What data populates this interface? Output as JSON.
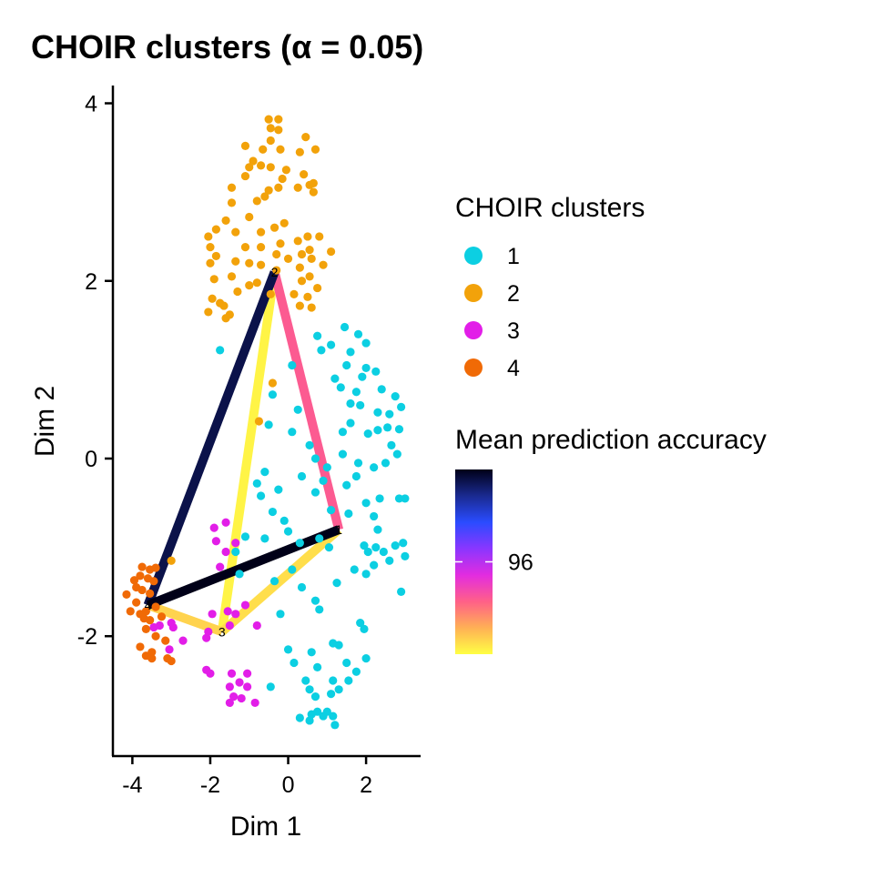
{
  "chart_data": {
    "type": "scatter",
    "title": "CHOIR clusters (α = 0.05)",
    "xlabel": "Dim 1",
    "ylabel": "Dim 2",
    "xlim": [
      -4.5,
      3.4
    ],
    "ylim": [
      -3.35,
      4.2
    ],
    "xticks": [
      -4,
      -2,
      0,
      2
    ],
    "yticks": [
      -2,
      0,
      2,
      4
    ],
    "grid": false,
    "legend_position": "right",
    "legend_clusters": {
      "title": "CHOIR clusters",
      "items": [
        {
          "label": "1",
          "color": "#0ccfe2"
        },
        {
          "label": "2",
          "color": "#f2a20a"
        },
        {
          "label": "3",
          "color": "#e21ee8"
        },
        {
          "label": "4",
          "color": "#f06a06"
        }
      ]
    },
    "legend_accuracy": {
      "title": "Mean prediction accuracy",
      "tick_label": "96",
      "tick_value": 96,
      "range": [
        93.5,
        98.5
      ],
      "colors": [
        "#ffff44",
        "#ffb055",
        "#ff6088",
        "#e22ce0",
        "#8a36ff",
        "#2a4cff",
        "#1a2a90",
        "#000018"
      ]
    },
    "centroids": [
      {
        "label": "1",
        "x": 1.3,
        "y": -0.8
      },
      {
        "label": "2",
        "x": -0.35,
        "y": 2.1
      },
      {
        "label": "3",
        "x": -1.7,
        "y": -1.95
      },
      {
        "label": "4",
        "x": -3.6,
        "y": -1.65
      }
    ],
    "edges": [
      {
        "from": 0,
        "to": 1,
        "accuracy": 95.0
      },
      {
        "from": 0,
        "to": 2,
        "accuracy": 93.8
      },
      {
        "from": 0,
        "to": 3,
        "accuracy": 98.5
      },
      {
        "from": 1,
        "to": 2,
        "accuracy": 93.6
      },
      {
        "from": 1,
        "to": 3,
        "accuracy": 98.2
      },
      {
        "from": 2,
        "to": 3,
        "accuracy": 93.9
      }
    ],
    "series": [
      {
        "name": "1",
        "color": "#0ccfe2",
        "points": [
          [
            -1.75,
            1.22
          ],
          [
            0.75,
            1.38
          ],
          [
            0.85,
            1.22
          ],
          [
            1.1,
            1.28
          ],
          [
            1.45,
            1.48
          ],
          [
            1.6,
            1.2
          ],
          [
            1.8,
            1.4
          ],
          [
            2.0,
            1.3
          ],
          [
            1.5,
            1.05
          ],
          [
            0.1,
            1.05
          ],
          [
            1.6,
            0.62
          ],
          [
            1.2,
            0.9
          ],
          [
            1.35,
            0.8
          ],
          [
            2.0,
            1.02
          ],
          [
            1.9,
            0.92
          ],
          [
            2.25,
            0.98
          ],
          [
            1.75,
            0.75
          ],
          [
            1.85,
            0.6
          ],
          [
            2.4,
            0.78
          ],
          [
            2.6,
            0.5
          ],
          [
            2.75,
            0.7
          ],
          [
            2.3,
            0.52
          ],
          [
            2.05,
            0.28
          ],
          [
            2.3,
            0.32
          ],
          [
            1.4,
            0.3
          ],
          [
            2.55,
            0.35
          ],
          [
            2.85,
            0.33
          ],
          [
            2.9,
            0.58
          ],
          [
            -0.4,
            0.72
          ],
          [
            0.25,
            0.55
          ],
          [
            1.6,
            0.4
          ],
          [
            -0.5,
            0.38
          ],
          [
            0.1,
            0.3
          ],
          [
            0.55,
            0.15
          ],
          [
            0.7,
            0.0
          ],
          [
            1.0,
            -0.1
          ],
          [
            1.4,
            0.05
          ],
          [
            1.8,
            -0.05
          ],
          [
            2.2,
            -0.1
          ],
          [
            2.5,
            -0.05
          ],
          [
            2.8,
            0.05
          ],
          [
            2.65,
            0.15
          ],
          [
            -0.8,
            -0.28
          ],
          [
            0.35,
            -0.2
          ],
          [
            0.9,
            -0.25
          ],
          [
            1.5,
            -0.3
          ],
          [
            1.75,
            -0.2
          ],
          [
            2.0,
            -0.5
          ],
          [
            2.35,
            -0.45
          ],
          [
            2.85,
            -0.45
          ],
          [
            3.0,
            -0.45
          ],
          [
            -0.6,
            -0.15
          ],
          [
            -0.7,
            -0.42
          ],
          [
            -0.25,
            -0.35
          ],
          [
            0.7,
            -0.38
          ],
          [
            1.1,
            -0.58
          ],
          [
            1.55,
            -0.62
          ],
          [
            2.2,
            -0.65
          ],
          [
            2.3,
            -0.8
          ],
          [
            -0.4,
            -0.6
          ],
          [
            -0.1,
            -0.7
          ],
          [
            0.0,
            -0.82
          ],
          [
            0.3,
            -0.95
          ],
          [
            0.8,
            -0.9
          ],
          [
            1.05,
            -1.0
          ],
          [
            1.95,
            -0.98
          ],
          [
            2.05,
            -1.05
          ],
          [
            2.25,
            -1.0
          ],
          [
            2.45,
            -1.05
          ],
          [
            2.75,
            -0.98
          ],
          [
            2.95,
            -0.95
          ],
          [
            3.0,
            -1.1
          ],
          [
            2.6,
            -1.15
          ],
          [
            2.2,
            -1.2
          ],
          [
            1.7,
            -1.25
          ],
          [
            1.25,
            -1.4
          ],
          [
            2.0,
            -1.3
          ],
          [
            2.9,
            -1.5
          ],
          [
            -1.1,
            -0.88
          ],
          [
            -0.6,
            -0.9
          ],
          [
            -1.25,
            -1.3
          ],
          [
            -0.35,
            -1.38
          ],
          [
            0.1,
            -1.25
          ],
          [
            0.35,
            -1.45
          ],
          [
            -1.35,
            -1.05
          ],
          [
            0.7,
            -1.6
          ],
          [
            0.8,
            -1.7
          ],
          [
            -0.2,
            -1.75
          ],
          [
            1.85,
            -1.85
          ],
          [
            1.95,
            -1.92
          ],
          [
            0.0,
            -2.15
          ],
          [
            1.3,
            -2.1
          ],
          [
            1.15,
            -2.08
          ],
          [
            0.6,
            -2.18
          ],
          [
            2.0,
            -2.25
          ],
          [
            0.15,
            -2.3
          ],
          [
            0.75,
            -2.35
          ],
          [
            1.5,
            -2.3
          ],
          [
            1.75,
            -2.4
          ],
          [
            0.45,
            -2.5
          ],
          [
            1.15,
            -2.5
          ],
          [
            1.55,
            -2.5
          ],
          [
            -0.45,
            -2.57
          ],
          [
            1.3,
            -2.6
          ],
          [
            0.55,
            -2.6
          ],
          [
            0.7,
            -2.68
          ],
          [
            1.1,
            -2.65
          ],
          [
            0.75,
            -2.85
          ],
          [
            0.6,
            -2.88
          ],
          [
            0.9,
            -2.9
          ],
          [
            1.0,
            -2.85
          ],
          [
            1.15,
            -2.9
          ],
          [
            0.3,
            -2.92
          ],
          [
            0.55,
            -2.95
          ],
          [
            1.2,
            -3.0
          ]
        ]
      },
      {
        "name": "2",
        "color": "#f2a20a",
        "points": [
          [
            -0.5,
            3.82
          ],
          [
            -0.25,
            3.82
          ],
          [
            -0.45,
            3.72
          ],
          [
            -0.25,
            3.7
          ],
          [
            0.45,
            3.62
          ],
          [
            0.7,
            3.48
          ],
          [
            -0.45,
            3.58
          ],
          [
            -1.1,
            3.52
          ],
          [
            -0.65,
            3.48
          ],
          [
            -0.2,
            3.48
          ],
          [
            0.3,
            3.45
          ],
          [
            -0.9,
            3.35
          ],
          [
            -1.0,
            3.28
          ],
          [
            -0.7,
            3.3
          ],
          [
            -0.45,
            3.28
          ],
          [
            -0.05,
            3.25
          ],
          [
            0.4,
            3.2
          ],
          [
            -1.1,
            3.18
          ],
          [
            -0.15,
            3.15
          ],
          [
            -0.25,
            3.05
          ],
          [
            0.55,
            3.08
          ],
          [
            0.65,
            3.1
          ],
          [
            -1.45,
            3.05
          ],
          [
            -0.5,
            3.02
          ],
          [
            0.65,
            3.0
          ],
          [
            0.25,
            3.05
          ],
          [
            -0.6,
            2.95
          ],
          [
            -0.8,
            2.9
          ],
          [
            -1.45,
            2.88
          ],
          [
            -1.0,
            2.72
          ],
          [
            -1.6,
            2.68
          ],
          [
            -0.35,
            2.6
          ],
          [
            -0.1,
            2.65
          ],
          [
            -1.85,
            2.58
          ],
          [
            -1.35,
            2.55
          ],
          [
            -0.7,
            2.55
          ],
          [
            0.5,
            2.5
          ],
          [
            0.8,
            2.5
          ],
          [
            -2.05,
            2.5
          ],
          [
            -0.2,
            2.42
          ],
          [
            0.25,
            2.45
          ],
          [
            -2.0,
            2.38
          ],
          [
            -1.1,
            2.38
          ],
          [
            -0.7,
            2.38
          ],
          [
            0.55,
            2.35
          ],
          [
            1.1,
            2.33
          ],
          [
            -0.3,
            2.3
          ],
          [
            0.35,
            2.3
          ],
          [
            -1.85,
            2.28
          ],
          [
            0.0,
            2.25
          ],
          [
            0.6,
            2.25
          ],
          [
            -1.35,
            2.22
          ],
          [
            -1.0,
            2.2
          ],
          [
            -2.0,
            2.2
          ],
          [
            -0.7,
            2.18
          ],
          [
            0.9,
            2.18
          ],
          [
            -0.3,
            2.12
          ],
          [
            0.3,
            2.15
          ],
          [
            -1.45,
            2.05
          ],
          [
            0.55,
            2.05
          ],
          [
            -1.9,
            2.02
          ],
          [
            0.35,
            2.0
          ],
          [
            -0.8,
            1.98
          ],
          [
            -1.0,
            1.95
          ],
          [
            -1.3,
            1.88
          ],
          [
            0.15,
            1.85
          ],
          [
            0.75,
            1.92
          ],
          [
            -0.45,
            1.85
          ],
          [
            -1.95,
            1.8
          ],
          [
            0.5,
            1.82
          ],
          [
            -2.05,
            1.65
          ],
          [
            -1.5,
            1.62
          ],
          [
            -1.75,
            1.75
          ],
          [
            0.6,
            1.7
          ],
          [
            -1.65,
            1.72
          ],
          [
            0.3,
            1.72
          ],
          [
            -1.6,
            1.58
          ],
          [
            -0.4,
            0.85
          ],
          [
            -0.75,
            0.42
          ],
          [
            -3.0,
            -1.15
          ]
        ]
      },
      {
        "name": "3",
        "color": "#e21ee8",
        "points": [
          [
            -1.9,
            -0.78
          ],
          [
            -1.6,
            -0.72
          ],
          [
            -1.85,
            -0.93
          ],
          [
            -1.6,
            -1.05
          ],
          [
            -1.75,
            -1.22
          ],
          [
            -1.35,
            -0.95
          ],
          [
            -3.0,
            -1.85
          ],
          [
            -3.3,
            -1.88
          ],
          [
            -3.45,
            -1.9
          ],
          [
            -2.95,
            -1.9
          ],
          [
            -2.05,
            -1.95
          ],
          [
            -1.55,
            -1.72
          ],
          [
            -1.95,
            -1.75
          ],
          [
            -1.35,
            -1.75
          ],
          [
            -1.1,
            -1.65
          ],
          [
            -0.8,
            -1.88
          ],
          [
            -1.5,
            -1.88
          ],
          [
            -2.1,
            -2.02
          ],
          [
            -2.7,
            -2.05
          ],
          [
            -3.05,
            -2.15
          ],
          [
            -2.1,
            -2.38
          ],
          [
            -2.0,
            -2.42
          ],
          [
            -1.45,
            -2.42
          ],
          [
            -1.05,
            -2.42
          ],
          [
            -1.25,
            -2.52
          ],
          [
            -1.5,
            -2.57
          ],
          [
            -1.05,
            -2.57
          ],
          [
            -1.4,
            -2.68
          ],
          [
            -1.5,
            -2.75
          ],
          [
            -1.2,
            -2.7
          ],
          [
            -0.85,
            -2.75
          ]
        ]
      },
      {
        "name": "4",
        "color": "#f06a06",
        "points": [
          [
            -3.75,
            -1.22
          ],
          [
            -3.55,
            -1.25
          ],
          [
            -3.4,
            -1.23
          ],
          [
            -3.8,
            -1.32
          ],
          [
            -3.6,
            -1.35
          ],
          [
            -3.95,
            -1.37
          ],
          [
            -3.9,
            -1.45
          ],
          [
            -3.45,
            -1.38
          ],
          [
            -3.75,
            -1.48
          ],
          [
            -3.55,
            -1.52
          ],
          [
            -4.15,
            -1.53
          ],
          [
            -3.9,
            -1.62
          ],
          [
            -3.4,
            -1.67
          ],
          [
            -3.65,
            -1.72
          ],
          [
            -3.8,
            -1.75
          ],
          [
            -4.05,
            -1.72
          ],
          [
            -3.7,
            -1.8
          ],
          [
            -3.55,
            -1.82
          ],
          [
            -3.25,
            -1.78
          ],
          [
            -3.65,
            -1.92
          ],
          [
            -3.4,
            -2.0
          ],
          [
            -3.15,
            -2.05
          ],
          [
            -3.8,
            -2.12
          ],
          [
            -3.5,
            -2.18
          ],
          [
            -3.65,
            -2.22
          ],
          [
            -3.0,
            -2.28
          ],
          [
            -3.5,
            -2.25
          ],
          [
            -3.1,
            -2.25
          ]
        ]
      }
    ]
  }
}
